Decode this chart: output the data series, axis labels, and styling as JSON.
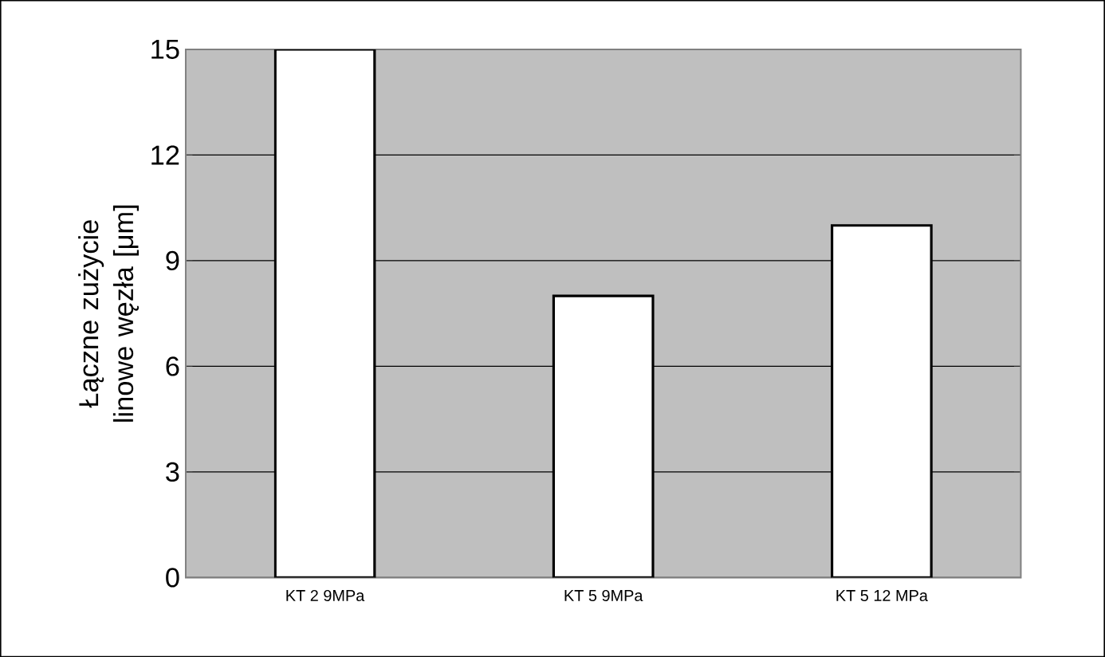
{
  "chart_data": {
    "type": "bar",
    "ylabel": "Łączne zużycie linowe węzła [μm]",
    "categories": [
      "KT 2 9MPa",
      "KT 5 9MPa",
      "KT 5 12 MPa"
    ],
    "values": [
      15,
      8,
      10
    ],
    "color": "#ffffff",
    "ylim": [
      0,
      15
    ],
    "yticks": [
      0,
      3,
      6,
      9,
      12,
      15
    ],
    "grid": "y"
  }
}
